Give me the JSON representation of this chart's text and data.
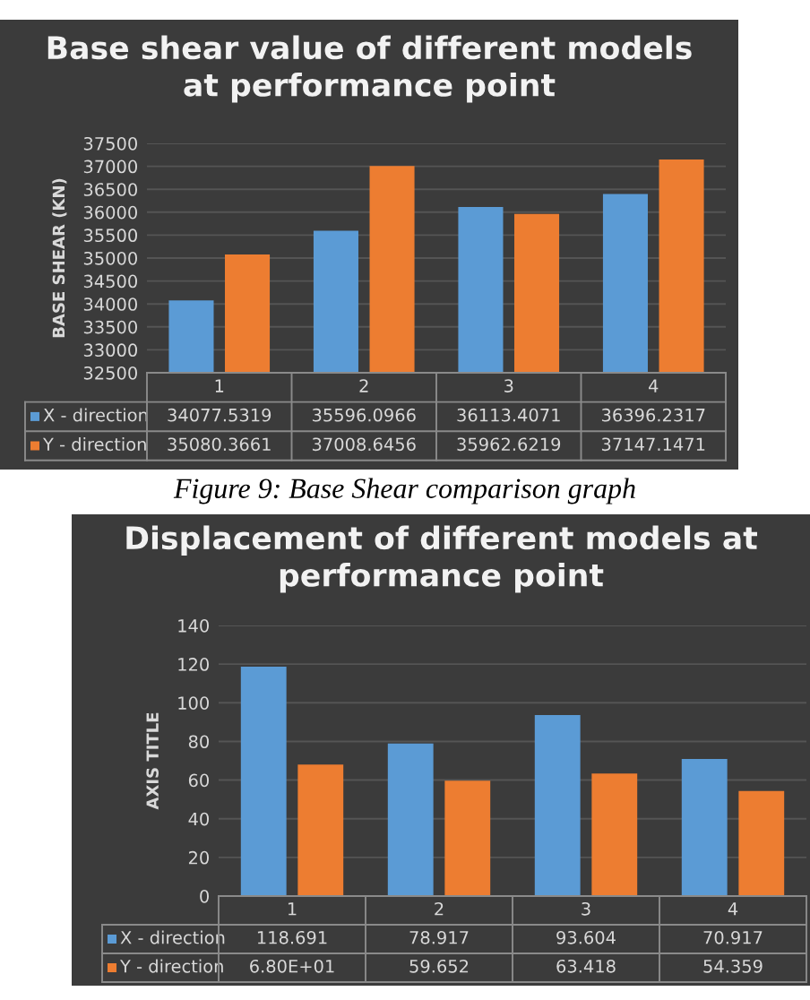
{
  "chart_data": [
    {
      "type": "bar",
      "title": "Base shear value of different models\nat performance point",
      "ylabel": "BASE SHEAR (KN)",
      "categories": [
        "1",
        "2",
        "3",
        "4"
      ],
      "series": [
        {
          "name": "X - direction",
          "color": "#5b9bd5",
          "values": [
            34077.5319,
            35596.0966,
            36113.4071,
            36396.2317
          ],
          "value_labels": [
            "34077.5319",
            "35596.0966",
            "36113.4071",
            "36396.2317"
          ]
        },
        {
          "name": "Y - direction",
          "color": "#ed7d31",
          "values": [
            35080.3661,
            37008.6456,
            35962.6219,
            37147.1471
          ],
          "value_labels": [
            "35080.3661",
            "37008.6456",
            "35962.6219",
            "37147.1471"
          ]
        }
      ],
      "ylim": [
        32500,
        37500
      ],
      "yticks": [
        32500,
        33000,
        33500,
        34000,
        34500,
        35000,
        35500,
        36000,
        36500,
        37000,
        37500
      ],
      "grid": "y",
      "legend": "bottom",
      "tick_labels": "y",
      "annotations": [
        "Figure 9: Base Shear comparison graph"
      ]
    },
    {
      "type": "bar",
      "title": "Displacement of different models at\nperformance point",
      "ylabel": "AXIS TITLE",
      "categories": [
        "1",
        "2",
        "3",
        "4"
      ],
      "series": [
        {
          "name": "X - direction",
          "color": "#5b9bd5",
          "values": [
            118.691,
            78.917,
            93.604,
            70.917
          ],
          "value_labels": [
            "118.691",
            "78.917",
            "93.604",
            "70.917"
          ]
        },
        {
          "name": "Y - direction",
          "color": "#ed7d31",
          "values": [
            68.0,
            59.652,
            63.418,
            54.359
          ],
          "value_labels": [
            "6.80E+01",
            "59.652",
            "63.418",
            "54.359"
          ]
        }
      ],
      "ylim": [
        0,
        140
      ],
      "yticks": [
        0,
        20,
        40,
        60,
        80,
        100,
        120,
        140
      ],
      "grid": "y",
      "legend": "bottom",
      "tick_labels": "y"
    }
  ]
}
